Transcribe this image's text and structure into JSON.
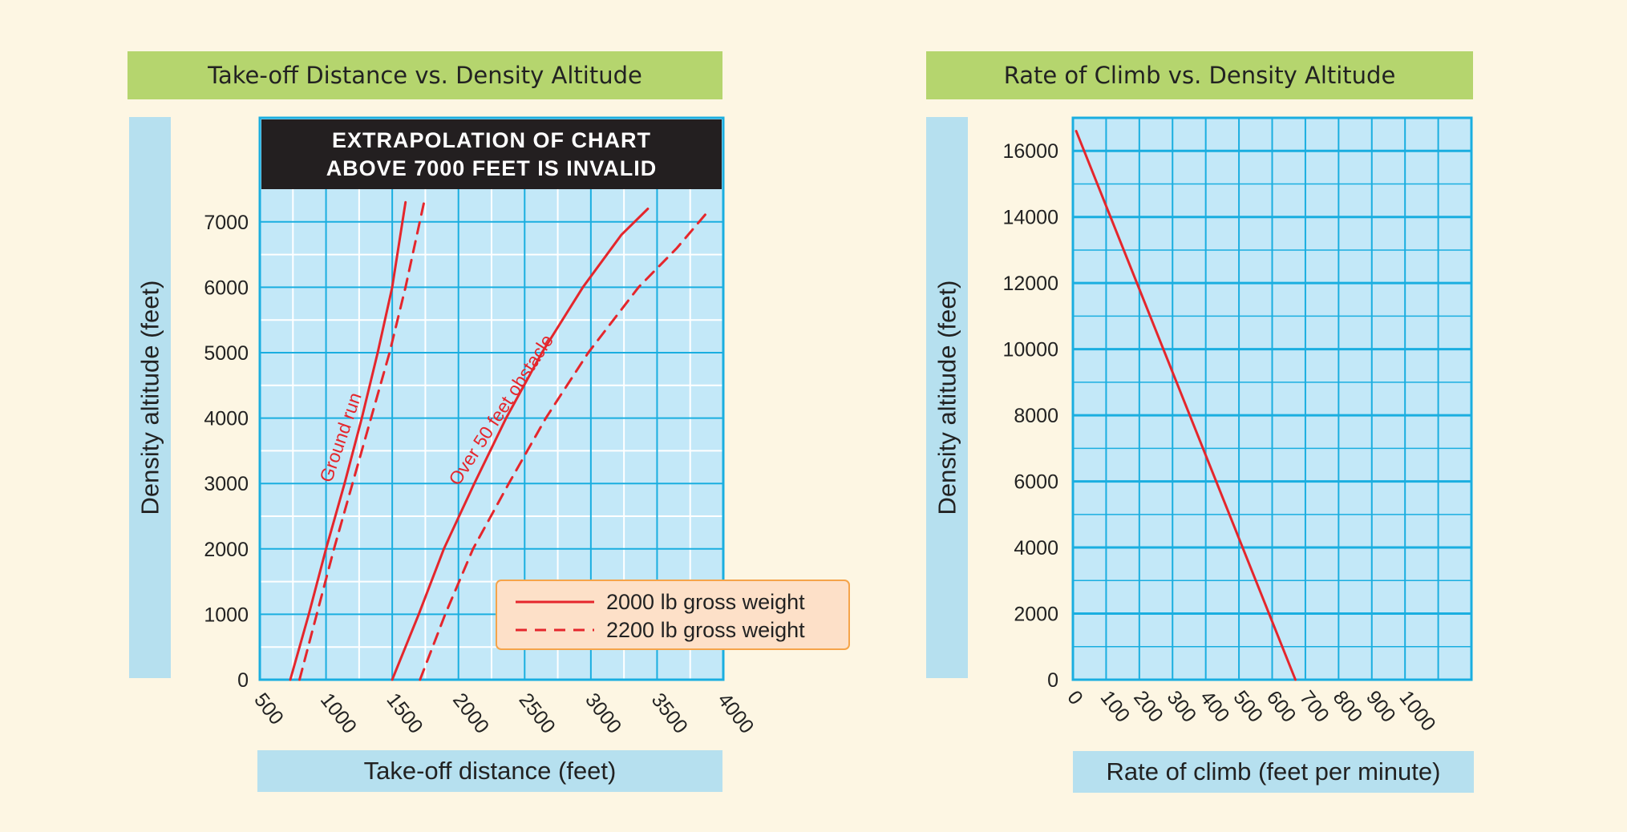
{
  "chart_data": [
    {
      "type": "line",
      "title": "Take-off Distance vs. Density Altitude",
      "xlabel": "Take-off distance (feet)",
      "ylabel": "Density altitude (feet)",
      "xlim": [
        500,
        4000
      ],
      "ylim": [
        0,
        7000
      ],
      "x_ticks": [
        "500",
        "1000",
        "1500",
        "2000",
        "2500",
        "3000",
        "3500",
        "4000"
      ],
      "y_ticks": [
        "0",
        "1000",
        "2000",
        "3000",
        "4000",
        "5000",
        "6000",
        "7000"
      ],
      "warning": [
        "EXTRAPOLATION OF CHART",
        "ABOVE 7000 FEET IS INVALID"
      ],
      "legend": [
        {
          "label": "2000 lb gross weight",
          "style": "solid"
        },
        {
          "label": "2200 lb gross weight",
          "style": "dashed"
        }
      ],
      "curve_labels": [
        "Ground run",
        "Over 50 feet obstacle"
      ],
      "series": [
        {
          "group": "Ground run",
          "style": "solid",
          "color": "#e5262c",
          "points": [
            [
              730,
              0
            ],
            [
              870,
              1000
            ],
            [
              1000,
              2000
            ],
            [
              1140,
              3000
            ],
            [
              1270,
              4000
            ],
            [
              1390,
              5000
            ],
            [
              1500,
              6000
            ],
            [
              1600,
              7300
            ]
          ]
        },
        {
          "group": "Ground run",
          "style": "dashed",
          "color": "#e5262c",
          "points": [
            [
              800,
              0
            ],
            [
              930,
              1000
            ],
            [
              1060,
              2000
            ],
            [
              1200,
              3000
            ],
            [
              1340,
              4000
            ],
            [
              1480,
              5000
            ],
            [
              1600,
              6000
            ],
            [
              1740,
              7300
            ]
          ]
        },
        {
          "group": "Over 50 feet obstacle",
          "style": "solid",
          "color": "#e5262c",
          "points": [
            [
              1500,
              0
            ],
            [
              1700,
              1000
            ],
            [
              1890,
              2000
            ],
            [
              2120,
              3000
            ],
            [
              2360,
              4000
            ],
            [
              2630,
              5000
            ],
            [
              2940,
              6000
            ],
            [
              3230,
              6800
            ],
            [
              3430,
              7200
            ]
          ]
        },
        {
          "group": "Over 50 feet obstacle",
          "style": "dashed",
          "color": "#e5262c",
          "points": [
            [
              1710,
              0
            ],
            [
              1900,
              1000
            ],
            [
              2110,
              2000
            ],
            [
              2380,
              3000
            ],
            [
              2660,
              4000
            ],
            [
              2980,
              5000
            ],
            [
              3360,
              6000
            ],
            [
              3650,
              6600
            ],
            [
              3880,
              7150
            ]
          ]
        }
      ]
    },
    {
      "type": "line",
      "title": "Rate of Climb vs. Density Altitude",
      "xlabel": "Rate of climb (feet per minute)",
      "ylabel": "Density altitude (feet)",
      "xlim": [
        0,
        1200
      ],
      "ylim": [
        0,
        17000
      ],
      "x_ticks": [
        "0",
        "100",
        "200",
        "300",
        "400",
        "500",
        "600",
        "700",
        "800",
        "900",
        "1000"
      ],
      "y_ticks": [
        "0",
        "2000",
        "4000",
        "6000",
        "8000",
        "10000",
        "12000",
        "14000",
        "16000"
      ],
      "series": [
        {
          "style": "solid",
          "color": "#e5262c",
          "points": [
            [
              10,
              16600
            ],
            [
              670,
              0
            ]
          ]
        }
      ]
    }
  ],
  "colors": {
    "plot_bg": "#c3e8f8",
    "grid_major": "#1aaee0",
    "grid_minor": "#ffffff",
    "curve": "#e5262c",
    "legend_bg": "#fde0c8",
    "legend_border": "#f5a44a",
    "title_bg": "#b5d56e",
    "axis_band_bg": "#b6e0ef",
    "page_bg": "#fdf6e3",
    "warning_bg": "#231f20"
  }
}
